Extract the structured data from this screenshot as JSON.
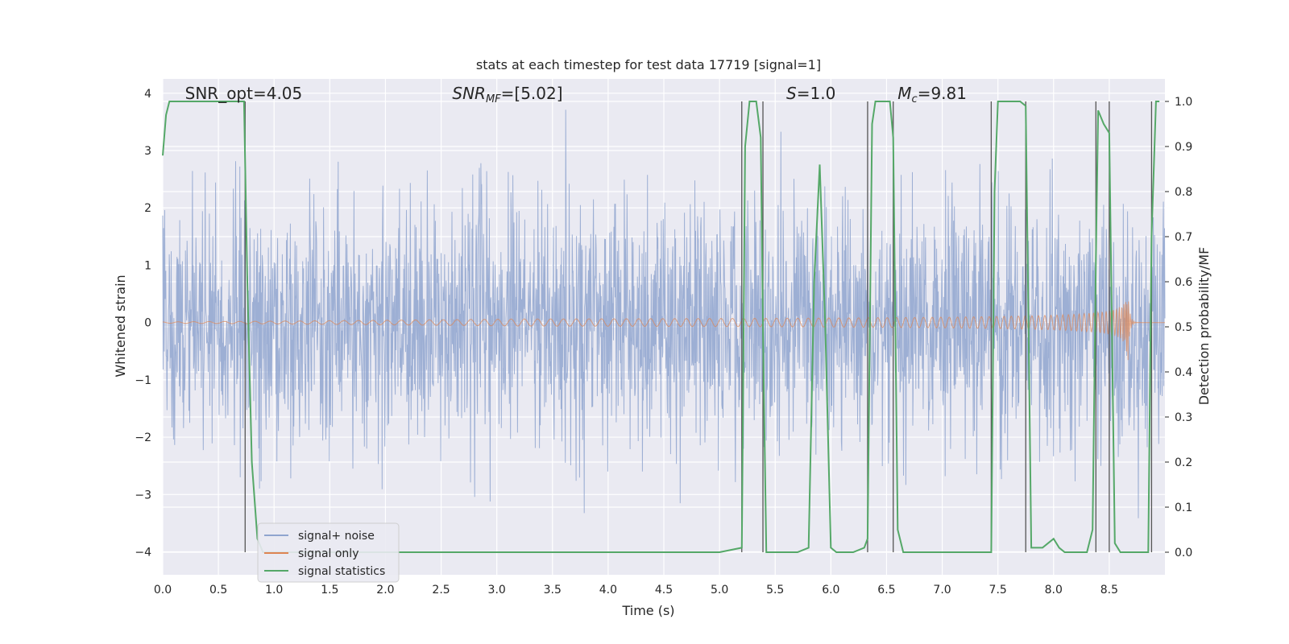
{
  "chart_data": {
    "type": "line",
    "title": "stats at each timestep for test data 17719 [signal=1]",
    "xlabel": "Time (s)",
    "ylabel": "Whitened strain",
    "ylabel_right": "Detection probability/MF",
    "xlim": [
      0,
      9
    ],
    "ylim": [
      -4.4,
      4.25
    ],
    "ylim_right": [
      -0.05,
      1.05
    ],
    "x_ticks": [
      "0.0",
      "0.5",
      "1.0",
      "1.5",
      "2.0",
      "2.5",
      "3.0",
      "3.5",
      "4.0",
      "4.5",
      "5.0",
      "5.5",
      "6.0",
      "6.5",
      "7.0",
      "7.5",
      "8.0",
      "8.5"
    ],
    "x_tick_values": [
      0,
      0.5,
      1,
      1.5,
      2,
      2.5,
      3,
      3.5,
      4,
      4.5,
      5,
      5.5,
      6,
      6.5,
      7,
      7.5,
      8,
      8.5
    ],
    "y_ticks": [
      "−4",
      "−3",
      "−2",
      "−1",
      "0",
      "1",
      "2",
      "3",
      "4"
    ],
    "y_tick_values": [
      -4,
      -3,
      -2,
      -1,
      0,
      1,
      2,
      3,
      4
    ],
    "y_ticks_right": [
      "0.0",
      "0.1",
      "0.2",
      "0.3",
      "0.4",
      "0.5",
      "0.6",
      "0.7",
      "0.8",
      "0.9",
      "1.0"
    ],
    "y_tick_values_right": [
      0,
      0.1,
      0.2,
      0.3,
      0.4,
      0.5,
      0.6,
      0.7,
      0.8,
      0.9,
      1.0
    ],
    "annotations": [
      {
        "text": "SNR_opt=4.05",
        "x": 0.2
      },
      {
        "text": "SNR",
        "sub": "MF",
        "suffix": "=[5.02]",
        "x": 2.6,
        "italic": true
      },
      {
        "text": "S",
        "suffix": "=1.0",
        "x": 5.6,
        "italic": true
      },
      {
        "text": "M",
        "sub": "c",
        "suffix": "=9.81",
        "x": 6.6,
        "italic": true
      }
    ],
    "vertical_lines": [
      0.74,
      5.2,
      5.39,
      6.33,
      6.56,
      7.44,
      7.75,
      8.38,
      8.5,
      8.88
    ],
    "series": [
      {
        "name": "signal+ noise",
        "color": "#8fa5cf"
      },
      {
        "name": "signal only",
        "color": "#dd8452"
      },
      {
        "name": "signal statistics",
        "color": "#55a868",
        "x": [
          0.0,
          0.03,
          0.06,
          0.1,
          0.2,
          0.3,
          0.4,
          0.5,
          0.6,
          0.7,
          0.73,
          0.76,
          0.8,
          0.85,
          0.9,
          1.0,
          1.5,
          2.0,
          2.5,
          3.0,
          3.5,
          4.0,
          4.5,
          5.0,
          5.2,
          5.23,
          5.27,
          5.3,
          5.33,
          5.37,
          5.39,
          5.42,
          5.5,
          5.6,
          5.7,
          5.8,
          5.85,
          5.9,
          5.95,
          6.0,
          6.05,
          6.1,
          6.2,
          6.3,
          6.33,
          6.37,
          6.4,
          6.5,
          6.53,
          6.56,
          6.6,
          6.65,
          6.7,
          6.8,
          7.0,
          7.2,
          7.44,
          7.47,
          7.5,
          7.55,
          7.6,
          7.7,
          7.75,
          7.78,
          7.8,
          7.9,
          7.95,
          8.0,
          8.05,
          8.1,
          8.2,
          8.3,
          8.35,
          8.38,
          8.4,
          8.45,
          8.5,
          8.55,
          8.6,
          8.7,
          8.85,
          8.88,
          8.92,
          8.95
        ],
        "y": [
          0.88,
          0.97,
          1.0,
          1.0,
          1.0,
          1.0,
          1.0,
          1.0,
          1.0,
          1.0,
          1.0,
          0.6,
          0.2,
          0.03,
          0.0,
          0.0,
          0.0,
          0.0,
          0.0,
          0.0,
          0.0,
          0.0,
          0.0,
          0.0,
          0.01,
          0.9,
          1.0,
          1.0,
          1.0,
          0.92,
          0.5,
          0.0,
          0.0,
          0.0,
          0.0,
          0.01,
          0.6,
          0.86,
          0.5,
          0.01,
          0.0,
          0.0,
          0.0,
          0.01,
          0.03,
          0.95,
          1.0,
          1.0,
          1.0,
          0.92,
          0.05,
          0.0,
          0.0,
          0.0,
          0.0,
          0.0,
          0.0,
          0.8,
          1.0,
          1.0,
          1.0,
          1.0,
          0.99,
          0.4,
          0.01,
          0.01,
          0.02,
          0.03,
          0.01,
          0.0,
          0.0,
          0.0,
          0.05,
          0.65,
          0.98,
          0.95,
          0.93,
          0.02,
          0.0,
          0.0,
          0.0,
          0.7,
          1.0,
          1.0
        ]
      }
    ],
    "legend_position": "lower left",
    "grid": true
  }
}
